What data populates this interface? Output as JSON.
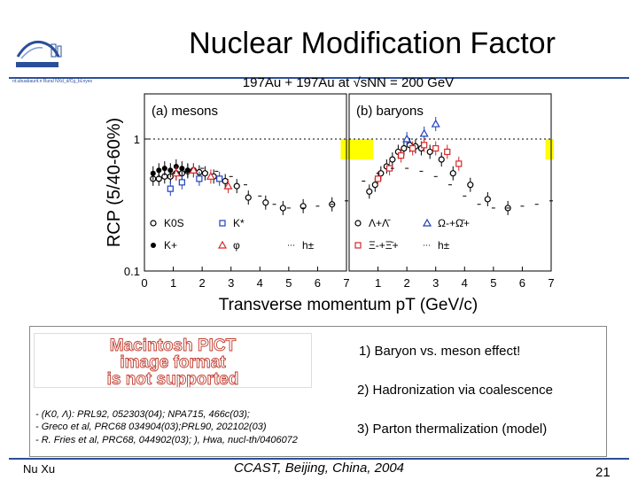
{
  "slide": {
    "title": "Nuclear Modification Factor",
    "logo_caption": "nt.ubuabaurit.n  Rural NXd_d/Cg_bLnyes",
    "points": [
      "1) Baryon vs. meson effect!",
      "2) Hadronization via coalescence",
      "3) Parton thermalization (model)"
    ],
    "references": [
      "- (K0, Λ): PRL92, 052303(04); NPA715, 466c(03);",
      "- Greco et al, PRC68 034904(03);PRL90, 202102(03)",
      "- R. Fries et al, PRC68, 044902(03); ), Hwa, nucl-th/0406072"
    ],
    "pict_lines": [
      "Macintosh PICT",
      "image format",
      "is not supported"
    ],
    "author": "Nu Xu",
    "conference": "CCAST, Beijing, China, 2004",
    "page_number": "21",
    "colors": {
      "accent": "#2a4f9a",
      "pict_text": "#c0392b",
      "band": "#ffff00"
    }
  },
  "chart_data": {
    "type": "scatter",
    "title": "197Au + 197Au at √sNN = 200 GeV",
    "xlabel": "Transverse momentum pT (GeV/c)",
    "ylabel": "RCP (5/40-60%)",
    "ylim": [
      0.1,
      2.2
    ],
    "log_y": true,
    "panels": [
      {
        "label": "(a) mesons",
        "xlim": [
          0,
          7
        ],
        "xticks": [
          "0",
          "1",
          "2",
          "3",
          "4",
          "5",
          "6",
          "7"
        ],
        "yticks": [
          "1",
          "0.1"
        ],
        "band_y": [
          0.7,
          1.0
        ],
        "series": [
          {
            "name": "K0S",
            "marker": "circle-open",
            "color": "#000000",
            "x": [
              0.3,
              0.5,
              0.7,
              0.9,
              1.1,
              1.3,
              1.5,
              1.7,
              1.9,
              2.1,
              2.4,
              2.8,
              3.2,
              3.6,
              4.2,
              4.8,
              5.5,
              6.5
            ],
            "y": [
              0.5,
              0.5,
              0.52,
              0.52,
              0.55,
              0.55,
              0.57,
              0.58,
              0.56,
              0.55,
              0.52,
              0.48,
              0.44,
              0.36,
              0.33,
              0.3,
              0.31,
              0.32
            ]
          },
          {
            "name": "K*",
            "marker": "square-open",
            "color": "#1f3fbf",
            "x": [
              0.9,
              1.3,
              1.9,
              2.6
            ],
            "y": [
              0.42,
              0.47,
              0.5,
              0.5
            ]
          },
          {
            "name": "K+",
            "marker": "circle-filled",
            "color": "#000000",
            "x": [
              0.3,
              0.5,
              0.7,
              0.9,
              1.1,
              1.3,
              1.5
            ],
            "y": [
              0.55,
              0.58,
              0.6,
              0.58,
              0.62,
              0.6,
              0.58
            ]
          },
          {
            "name": "φ",
            "marker": "triangle-open",
            "color": "#d62728",
            "x": [
              1.1,
              1.7,
              2.3,
              2.9
            ],
            "y": [
              0.55,
              0.58,
              0.52,
              0.44
            ]
          },
          {
            "name": "h±",
            "marker": "dash",
            "color": "#000000",
            "x": [
              0.5,
              1.0,
              1.5,
              2.0,
              2.5,
              3.0,
              3.5,
              4.0,
              4.5,
              5.0,
              5.5,
              6.0,
              6.5,
              7.0
            ],
            "y": [
              0.48,
              0.55,
              0.6,
              0.6,
              0.57,
              0.52,
              0.45,
              0.37,
              0.32,
              0.3,
              0.3,
              0.31,
              0.32,
              0.34
            ]
          }
        ]
      },
      {
        "label": "(b) baryons",
        "xlim": [
          0,
          7
        ],
        "xticks": [
          "0",
          "1",
          "2",
          "3",
          "4",
          "5",
          "6",
          "7"
        ],
        "yticks": [],
        "band_y": [
          0.7,
          1.0
        ],
        "series": [
          {
            "name": "Λ+Λ̄",
            "marker": "circle-open",
            "color": "#000000",
            "x": [
              0.7,
              0.9,
              1.1,
              1.3,
              1.5,
              1.7,
              1.9,
              2.1,
              2.3,
              2.5,
              2.8,
              3.2,
              3.6,
              4.2,
              4.8,
              5.5
            ],
            "y": [
              0.4,
              0.45,
              0.55,
              0.62,
              0.7,
              0.8,
              0.85,
              0.9,
              0.88,
              0.85,
              0.8,
              0.7,
              0.55,
              0.45,
              0.35,
              0.3
            ]
          },
          {
            "name": "Ω-+Ω̄+",
            "marker": "triangle-open",
            "color": "#1f3fbf",
            "x": [
              2.0,
              2.6,
              3.0
            ],
            "y": [
              1.0,
              1.1,
              1.3
            ]
          },
          {
            "name": "Ξ-+Ξ̄+",
            "marker": "square-open",
            "color": "#d62728",
            "x": [
              1.0,
              1.4,
              1.8,
              2.2,
              2.6,
              3.0,
              3.4,
              3.8
            ],
            "y": [
              0.5,
              0.6,
              0.75,
              0.85,
              0.9,
              0.85,
              0.8,
              0.65
            ]
          },
          {
            "name": "h±",
            "marker": "dash",
            "color": "#000000",
            "x": [
              0.5,
              1.0,
              1.5,
              2.0,
              2.5,
              3.0,
              3.5,
              4.0,
              4.5,
              5.0,
              5.5,
              6.0,
              6.5,
              7.0
            ],
            "y": [
              0.48,
              0.55,
              0.6,
              0.6,
              0.57,
              0.52,
              0.45,
              0.37,
              0.32,
              0.3,
              0.3,
              0.31,
              0.32,
              0.34
            ]
          }
        ]
      }
    ],
    "legend_placement": "bottom-left"
  }
}
